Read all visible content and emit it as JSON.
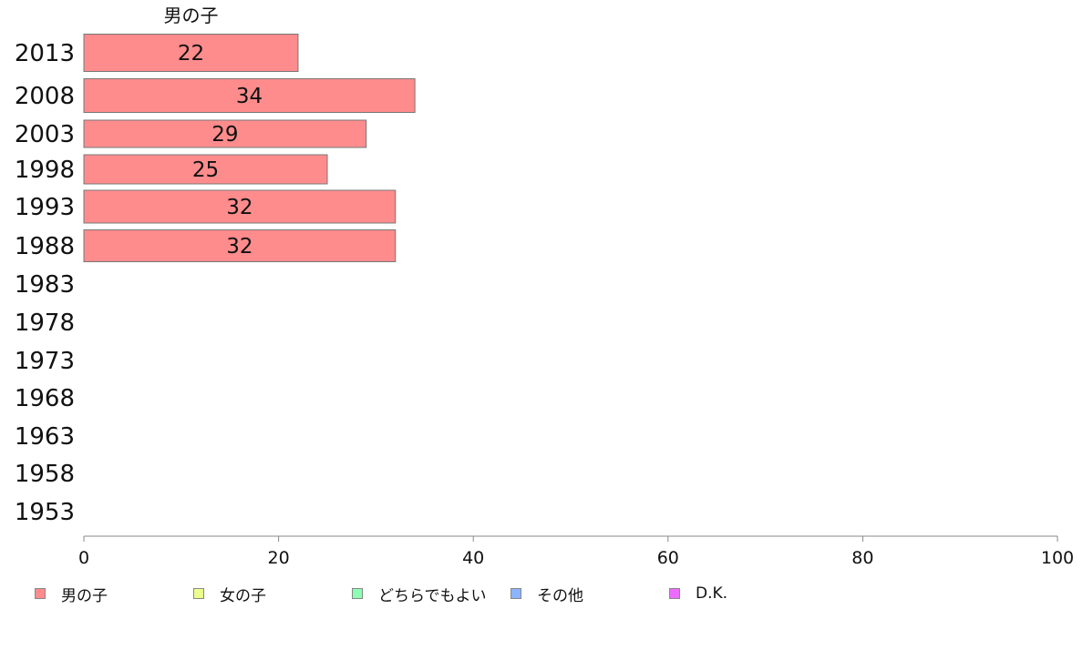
{
  "chart_data": {
    "type": "bar",
    "orientation": "horizontal",
    "categories": [
      "2013",
      "2008",
      "2003",
      "1998",
      "1993",
      "1988",
      "1983",
      "1978",
      "1973",
      "1968",
      "1963",
      "1958",
      "1953"
    ],
    "series": [
      {
        "name": "男の子",
        "color": "#ff8c8c",
        "values": [
          22,
          34,
          29,
          25,
          32,
          32,
          null,
          null,
          null,
          null,
          null,
          null,
          null
        ]
      }
    ],
    "data_labels": [
      "22",
      "34",
      "29",
      "25",
      "32",
      "32"
    ],
    "series_heading": "男の子",
    "xlim": [
      0,
      100
    ],
    "xticks": [
      0,
      20,
      40,
      60,
      80,
      100
    ],
    "grid": false,
    "legend_position": "bottom-left",
    "legend": [
      {
        "label": "男の子",
        "color": "#ff8c8c"
      },
      {
        "label": "女の子",
        "color": "#ecff8c"
      },
      {
        "label": "どちらでもよい",
        "color": "#8cffb4"
      },
      {
        "label": "その他",
        "color": "#8cb4ff"
      },
      {
        "label": "D.K.",
        "color": "#ec6cff"
      }
    ]
  }
}
